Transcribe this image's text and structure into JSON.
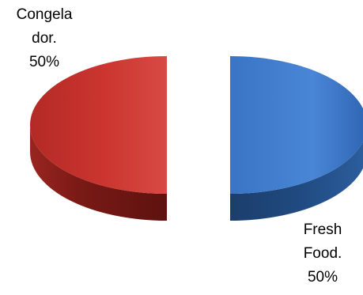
{
  "chart_data": {
    "type": "pie",
    "style": "3d-exploded",
    "title": "",
    "legend": "none",
    "slices": [
      {
        "label": "Congelador",
        "value": 50,
        "unit": "%",
        "color": "#c8302a",
        "label_lines": [
          "Congela",
          "dor.",
          "50%"
        ]
      },
      {
        "label": "Fresh Food",
        "value": 50,
        "unit": "%",
        "color": "#3d7ac8",
        "label_lines": [
          "Fresh",
          "Food.",
          "50%"
        ]
      }
    ]
  }
}
